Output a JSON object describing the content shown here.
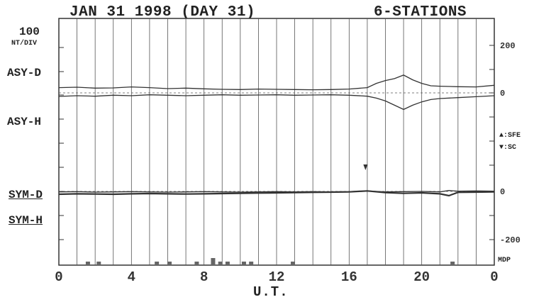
{
  "header": {
    "title_left": "JAN 31 1998 (DAY 31)",
    "title_right": "6-STATIONS"
  },
  "scale": {
    "value": "100",
    "unit": "NT/DIV"
  },
  "left_labels": {
    "asy_d": "ASY-D",
    "asy_h": "ASY-H",
    "sym_d": "SYM-D",
    "sym_h": "SYM-H"
  },
  "legend": {
    "sfe": "▲:SFE",
    "sc": "▼:SC"
  },
  "chart_data": {
    "type": "line",
    "xlabel": "U.T.",
    "x_ticks": [
      "0",
      "4",
      "8",
      "12",
      "16",
      "20",
      "0"
    ],
    "xlim": [
      0,
      24
    ],
    "right_axis_ticks": [
      "200",
      "0",
      "0",
      "-200"
    ],
    "mdp_label": "MDP",
    "asy_panel_ylim": [
      -50,
      300
    ],
    "sym_panel_ylim": [
      -250,
      50
    ],
    "series": [
      {
        "name": "ASY-D",
        "x": [
          0,
          1,
          2,
          3,
          4,
          5,
          6,
          7,
          8,
          9,
          10,
          11,
          12,
          13,
          14,
          15,
          16,
          17,
          17.5,
          18,
          18.5,
          19,
          19.5,
          20,
          20.5,
          21,
          22,
          23,
          24
        ],
        "values": [
          22,
          24,
          20,
          21,
          25,
          22,
          18,
          20,
          17,
          15,
          14,
          16,
          15,
          14,
          13,
          14,
          16,
          22,
          40,
          52,
          60,
          75,
          55,
          40,
          30,
          28,
          26,
          25,
          32
        ]
      },
      {
        "name": "ASY-H",
        "x": [
          0,
          1,
          2,
          3,
          4,
          5,
          6,
          7,
          8,
          9,
          10,
          11,
          12,
          13,
          14,
          15,
          16,
          17,
          17.5,
          18,
          18.5,
          19,
          19.5,
          20,
          20.5,
          21,
          22,
          23,
          24
        ],
        "values": [
          -15,
          -12,
          -14,
          -10,
          -12,
          -8,
          -10,
          -12,
          -10,
          -8,
          -10,
          -9,
          -8,
          -10,
          -9,
          -8,
          -10,
          -14,
          -22,
          -34,
          -52,
          -70,
          -52,
          -38,
          -28,
          -24,
          -20,
          -16,
          -12
        ]
      },
      {
        "name": "SYM-D",
        "x": [
          0,
          1,
          2,
          3,
          4,
          5,
          6,
          7,
          8,
          9,
          10,
          11,
          12,
          13,
          14,
          15,
          16,
          17,
          18,
          19,
          20,
          21,
          21.5,
          22,
          23,
          24
        ],
        "values": [
          -2,
          -1,
          -3,
          -2,
          -1,
          -2,
          -3,
          -2,
          -1,
          -2,
          -3,
          -2,
          -1,
          -2,
          -1,
          -2,
          -1,
          2,
          -2,
          -1,
          0,
          -2,
          4,
          1,
          2,
          1
        ]
      },
      {
        "name": "SYM-H",
        "x": [
          0,
          1,
          2,
          3,
          4,
          5,
          6,
          7,
          8,
          9,
          10,
          11,
          12,
          13,
          14,
          15,
          16,
          17,
          18,
          19,
          20,
          21,
          21.5,
          22,
          23,
          24
        ],
        "values": [
          -12,
          -10,
          -11,
          -12,
          -10,
          -9,
          -10,
          -11,
          -10,
          -9,
          -8,
          -7,
          -6,
          -5,
          -4,
          -3,
          -2,
          2,
          -5,
          -8,
          -6,
          -10,
          -18,
          -4,
          -3,
          -2
        ]
      }
    ],
    "sc_event_x": 16.9,
    "mdp_bars": [
      {
        "x": 1.6,
        "v": 1
      },
      {
        "x": 2.2,
        "v": 1
      },
      {
        "x": 5.4,
        "v": 1
      },
      {
        "x": 6.1,
        "v": 1
      },
      {
        "x": 7.6,
        "v": 1
      },
      {
        "x": 8.5,
        "v": 2
      },
      {
        "x": 8.9,
        "v": 1
      },
      {
        "x": 9.3,
        "v": 1
      },
      {
        "x": 10.2,
        "v": 1
      },
      {
        "x": 10.6,
        "v": 1
      },
      {
        "x": 12.9,
        "v": 1
      },
      {
        "x": 21.7,
        "v": 1
      }
    ]
  }
}
